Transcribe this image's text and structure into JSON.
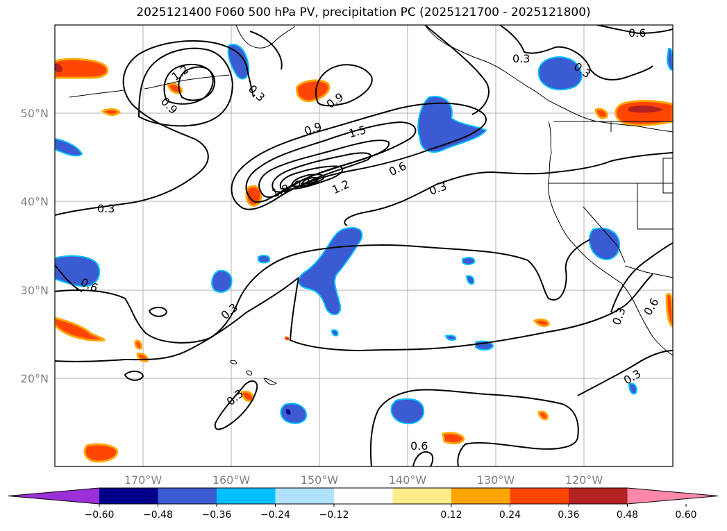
{
  "title": "2025121400 F060 500 hPa PV, precipitation PC (2025121700 - 2025121800)",
  "lat_labels": [
    "50°N",
    "40°N",
    "30°N",
    "20°N"
  ],
  "lon_labels": [
    "170°W",
    "160°W",
    "150°W",
    "140°W",
    "130°W",
    "120°W"
  ],
  "contour_labels": [
    "0.6",
    "0.3",
    "0.3",
    "1.2",
    "0.9",
    "0.3",
    "0.9",
    "0.9",
    "1.5",
    "2.1",
    "1.8",
    "1.2",
    "0.6",
    "0.3",
    "0.3",
    "0.6",
    "0.3",
    "0.3",
    "0.3",
    "0.3",
    "0.6",
    "0.6"
  ],
  "colorbar": {
    "ticks": [
      "−0.60",
      "−0.48",
      "−0.36",
      "−0.24",
      "−0.12",
      "0.12",
      "0.24",
      "0.36",
      "0.48",
      "0.60"
    ],
    "colors": [
      "#9b30d9",
      "#00008b",
      "#3a5bd1",
      "#00bfff",
      "#b0e2ff",
      "#ffffff",
      "#ffec8b",
      "#ffa500",
      "#ff4500",
      "#b22222",
      "#ff88aa"
    ]
  }
}
